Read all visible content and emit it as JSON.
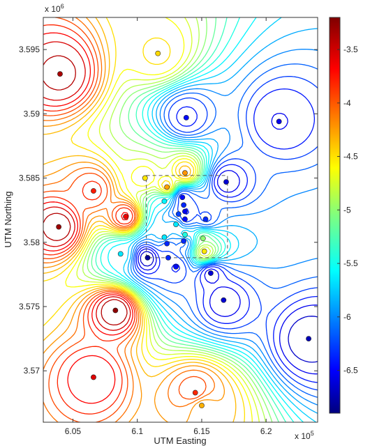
{
  "chart_data": {
    "type": "contour",
    "xlabel": "UTM Easting",
    "ylabel": "UTM Northing",
    "x_multiplier_label": "x 10",
    "x_multiplier_exp": "5",
    "y_multiplier_label": "x 10",
    "y_multiplier_exp": "6",
    "xlim": [
      6.027,
      6.24
    ],
    "ylim": [
      3.566,
      3.5975
    ],
    "x_ticks": [
      6.05,
      6.1,
      6.15,
      6.2
    ],
    "x_tick_labels": [
      "6.05",
      "6.1",
      "6.15",
      "6.2"
    ],
    "y_ticks": [
      3.57,
      3.575,
      3.58,
      3.585,
      3.59,
      3.595
    ],
    "y_tick_labels": [
      "3.57",
      "3.575",
      "3.58",
      "3.585",
      "3.59",
      "3.595"
    ],
    "colorbar": {
      "range": [
        -6.9,
        -3.2
      ],
      "ticks": [
        -3.5,
        -4,
        -4.5,
        -5,
        -5.5,
        -6,
        -6.5
      ],
      "tick_labels": [
        "-3.5",
        "-4",
        "-4.5",
        "-5",
        "-5.5",
        "-6",
        "-6.5"
      ],
      "colormap": "jet"
    },
    "dashed_box": {
      "x": [
        6.107,
        6.17
      ],
      "y": [
        3.5788,
        3.5852
      ]
    },
    "points": [
      {
        "x": 6.04,
        "y": 3.5931,
        "v": -3.35
      },
      {
        "x": 6.066,
        "y": 3.584,
        "v": -3.75
      },
      {
        "x": 6.039,
        "y": 3.5812,
        "v": -3.3
      },
      {
        "x": 6.091,
        "y": 3.582,
        "v": -3.6
      },
      {
        "x": 6.083,
        "y": 3.5747,
        "v": -3.25
      },
      {
        "x": 6.066,
        "y": 3.5695,
        "v": -3.55
      },
      {
        "x": 6.116,
        "y": 3.5947,
        "v": -4.45
      },
      {
        "x": 6.106,
        "y": 3.585,
        "v": -4.5
      },
      {
        "x": 6.123,
        "y": 3.5843,
        "v": -4.25
      },
      {
        "x": 6.137,
        "y": 3.5854,
        "v": -4.2
      },
      {
        "x": 6.121,
        "y": 3.5832,
        "v": -5.55
      },
      {
        "x": 6.138,
        "y": 3.5897,
        "v": -6.4
      },
      {
        "x": 6.21,
        "y": 3.5894,
        "v": -6.5
      },
      {
        "x": 6.169,
        "y": 3.5847,
        "v": -6.6
      },
      {
        "x": 6.135,
        "y": 3.5835,
        "v": -6.4
      },
      {
        "x": 6.136,
        "y": 3.5829,
        "v": -6.3
      },
      {
        "x": 6.137,
        "y": 3.5824,
        "v": -6.5
      },
      {
        "x": 6.132,
        "y": 3.5822,
        "v": -6.2
      },
      {
        "x": 6.137,
        "y": 3.5818,
        "v": -6.4
      },
      {
        "x": 6.13,
        "y": 3.5814,
        "v": -5.6
      },
      {
        "x": 6.153,
        "y": 3.5818,
        "v": -6.3
      },
      {
        "x": 6.137,
        "y": 3.5806,
        "v": -5.4
      },
      {
        "x": 6.121,
        "y": 3.5804,
        "v": -5.6
      },
      {
        "x": 6.151,
        "y": 3.5803,
        "v": -5.0
      },
      {
        "x": 6.136,
        "y": 3.5801,
        "v": -6.3
      },
      {
        "x": 6.123,
        "y": 3.5799,
        "v": -6.3
      },
      {
        "x": 6.152,
        "y": 3.5793,
        "v": -4.5
      },
      {
        "x": 6.087,
        "y": 3.5791,
        "v": -5.6
      },
      {
        "x": 6.108,
        "y": 3.5788,
        "v": -6.8
      },
      {
        "x": 6.124,
        "y": 3.5788,
        "v": -6.3
      },
      {
        "x": 6.13,
        "y": 3.5781,
        "v": -6.4
      },
      {
        "x": 6.157,
        "y": 3.5776,
        "v": -6.6
      },
      {
        "x": 6.167,
        "y": 3.5755,
        "v": -6.6
      },
      {
        "x": 6.233,
        "y": 3.5725,
        "v": -6.7
      },
      {
        "x": 6.145,
        "y": 3.5683,
        "v": -3.8
      },
      {
        "x": 6.15,
        "y": 3.5673,
        "v": -4.3
      }
    ]
  }
}
